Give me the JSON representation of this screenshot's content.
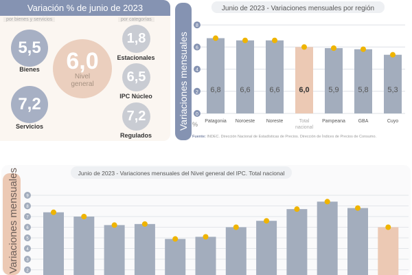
{
  "summary": {
    "title": "Variación % de junio de 2023",
    "left_caption": "por bienes y servicios",
    "right_caption": "por categorías",
    "bienes": {
      "value": "5,5",
      "label": "Bienes"
    },
    "servicios": {
      "value": "7,2",
      "label": "Servicios"
    },
    "general": {
      "value": "6,0",
      "label1": "Nivel",
      "label2": "general"
    },
    "estacionales": {
      "value": "1,8",
      "label": "Estacionales"
    },
    "nucleo": {
      "value": "6,5",
      "label": "IPC Núcleo"
    },
    "regulados": {
      "value": "7,2",
      "label": "Regulados"
    }
  },
  "colors": {
    "bar": "#a3adbd",
    "highlight": "#ecc9b4",
    "dot": "#efb400",
    "panel": "#8593b2"
  },
  "chart_data": [
    {
      "type": "bar",
      "title": "Junio de 2023 - Variaciones mensuales por región",
      "ylabel": "Variaciones  mensuales",
      "unit": "%",
      "ylim": [
        0,
        8
      ],
      "yticks": [
        0,
        2,
        4,
        6,
        8
      ],
      "categories": [
        "Patagonia",
        "Noroeste",
        "Noreste",
        "Total nacional",
        "Pampeana",
        "GBA",
        "Cuyo"
      ],
      "values": [
        6.8,
        6.6,
        6.6,
        6.0,
        5.9,
        5.8,
        5.3
      ],
      "data_labels": [
        "6,8",
        "6,6",
        "6,6",
        "6,0",
        "5,9",
        "5,8",
        "5,3"
      ],
      "highlight": "Total nacional",
      "source_bold": "Fuente:",
      "source": " INDEC. Dirección Nacional de Estadísticas de Precios. Dirección de Índices de Precios de Consumo."
    },
    {
      "type": "bar",
      "title": "Junio de 2023 - Variaciones mensuales del Nivel general del IPC. Total nacional",
      "ylabel": "Variaciones mensuales",
      "yticks": [
        2,
        3,
        4,
        5,
        6,
        7,
        8,
        9
      ],
      "ylim": [
        0,
        9
      ],
      "values": [
        7.4,
        7.0,
        6.2,
        6.3,
        4.9,
        5.1,
        6.0,
        6.6,
        7.7,
        8.4,
        7.8,
        6.0
      ],
      "highlight_index": 11
    }
  ]
}
